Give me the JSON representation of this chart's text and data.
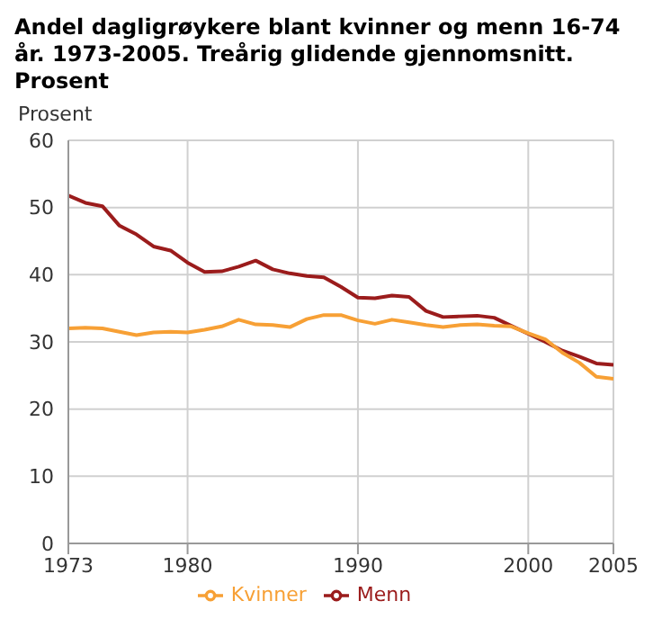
{
  "chart_data": {
    "type": "line",
    "title": "Andel dagligrøykere blant kvinner og menn 16-74 år. 1973-2005. Treårig glidende gjennomsnitt. Prosent",
    "ylabel": "Prosent",
    "x": [
      1973,
      1974,
      1975,
      1976,
      1977,
      1978,
      1979,
      1980,
      1981,
      1982,
      1983,
      1984,
      1985,
      1986,
      1987,
      1988,
      1989,
      1990,
      1991,
      1992,
      1993,
      1994,
      1995,
      1996,
      1997,
      1998,
      1999,
      2000,
      2001,
      2002,
      2003,
      2004,
      2005
    ],
    "series": [
      {
        "name": "Menn",
        "color": "#9b1c1c",
        "values": [
          51.8,
          50.7,
          50.2,
          47.3,
          46,
          44.2,
          43.6,
          41.8,
          40.4,
          40.5,
          41.2,
          42.1,
          40.8,
          40.2,
          39.8,
          39.6,
          38.2,
          36.6,
          36.5,
          36.9,
          36.7,
          34.6,
          33.7,
          33.8,
          33.9,
          33.6,
          32.4,
          31.2,
          30,
          28.7,
          27.8,
          26.8,
          26.6
        ]
      },
      {
        "name": "Kvinner",
        "color": "#f7a035",
        "values": [
          32,
          32.1,
          32,
          31.5,
          31,
          31.4,
          31.5,
          31.4,
          31.8,
          32.3,
          33.3,
          32.6,
          32.5,
          32.2,
          33.4,
          34,
          34,
          33.2,
          32.7,
          33.3,
          32.9,
          32.5,
          32.2,
          32.5,
          32.6,
          32.4,
          32.3,
          31.3,
          30.4,
          28.4,
          26.9,
          24.8,
          24.5
        ]
      }
    ],
    "xlim": [
      1973,
      2005
    ],
    "xticks": [
      1973,
      1980,
      1990,
      2000,
      2005
    ],
    "ylim": [
      0,
      60
    ],
    "yticks": [
      0,
      10,
      20,
      30,
      40,
      50,
      60
    ],
    "grid": true,
    "legend": "bottom",
    "line_style": "solid",
    "marker": "none"
  }
}
